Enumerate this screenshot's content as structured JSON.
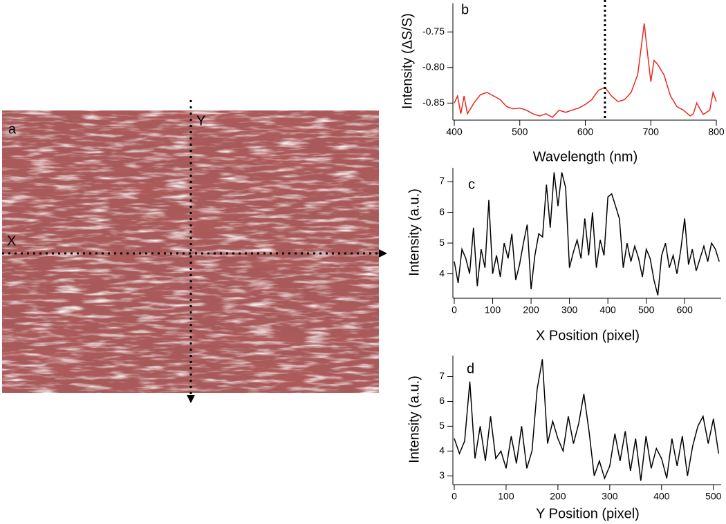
{
  "chart_data": [
    {
      "type": "image",
      "label": "a",
      "annotations": [
        "X",
        "Y"
      ],
      "color": "#a85a5a"
    },
    {
      "type": "line",
      "label": "b",
      "xlabel": "Wavelength (nm)",
      "ylabel": "Intensity (ΔS/S)",
      "color": "#e8281e",
      "x": [
        400,
        405,
        410,
        415,
        420,
        430,
        440,
        450,
        460,
        470,
        480,
        490,
        500,
        510,
        520,
        530,
        540,
        550,
        560,
        570,
        580,
        590,
        600,
        610,
        620,
        630,
        640,
        650,
        660,
        670,
        680,
        690,
        695,
        700,
        705,
        710,
        720,
        730,
        740,
        750,
        760,
        765,
        770,
        780,
        790,
        795,
        800
      ],
      "values": [
        -0.85,
        -0.84,
        -0.865,
        -0.84,
        -0.865,
        -0.85,
        -0.838,
        -0.835,
        -0.84,
        -0.845,
        -0.855,
        -0.858,
        -0.857,
        -0.86,
        -0.865,
        -0.868,
        -0.865,
        -0.87,
        -0.86,
        -0.863,
        -0.86,
        -0.857,
        -0.852,
        -0.845,
        -0.832,
        -0.828,
        -0.84,
        -0.848,
        -0.845,
        -0.835,
        -0.81,
        -0.738,
        -0.78,
        -0.82,
        -0.79,
        -0.795,
        -0.81,
        -0.84,
        -0.855,
        -0.86,
        -0.868,
        -0.865,
        -0.85,
        -0.866,
        -0.86,
        -0.835,
        -0.848
      ],
      "xlim": [
        400,
        800
      ],
      "xticks": [
        400,
        500,
        600,
        700,
        800
      ],
      "ylim": [
        -0.872,
        -0.71
      ],
      "yticks": [
        -0.85,
        {
          "value": -0.8,
          "label": "-0.80"
        },
        -0.75
      ],
      "marker_x": 630
    },
    {
      "type": "line",
      "label": "c",
      "xlabel": "X Position (pixel)",
      "ylabel": "Intensity (a.u.)",
      "color": "#000000",
      "x": [
        0,
        10,
        20,
        30,
        40,
        50,
        60,
        70,
        80,
        90,
        100,
        110,
        120,
        130,
        140,
        150,
        160,
        170,
        180,
        190,
        200,
        210,
        220,
        230,
        240,
        250,
        260,
        270,
        280,
        290,
        300,
        310,
        320,
        330,
        340,
        350,
        360,
        370,
        380,
        390,
        400,
        410,
        420,
        430,
        440,
        450,
        460,
        470,
        480,
        490,
        500,
        510,
        520,
        530,
        540,
        550,
        560,
        570,
        580,
        590,
        600,
        610,
        620,
        630,
        640,
        650,
        660,
        670,
        680,
        690
      ],
      "values": [
        4.4,
        3.7,
        4.8,
        4.5,
        4.0,
        5.5,
        3.6,
        4.8,
        4.2,
        6.4,
        4.0,
        4.6,
        3.9,
        5.0,
        4.5,
        5.3,
        3.8,
        4.3,
        5.0,
        5.6,
        3.5,
        4.6,
        5.3,
        5.2,
        6.9,
        5.5,
        7.3,
        6.2,
        7.3,
        6.8,
        4.2,
        4.7,
        5.1,
        4.5,
        5.8,
        4.6,
        6.0,
        4.2,
        5.1,
        4.6,
        6.5,
        6.6,
        6.2,
        5.8,
        4.2,
        5.0,
        4.4,
        4.9,
        4.5,
        3.9,
        4.8,
        4.5,
        3.8,
        3.3,
        4.6,
        5.0,
        4.2,
        4.6,
        4.0,
        4.8,
        5.8,
        4.3,
        4.8,
        4.1,
        4.5,
        4.9,
        4.4,
        5.0,
        4.8,
        4.4
      ],
      "xlim": [
        0,
        695
      ],
      "xticks": [
        0,
        100,
        200,
        300,
        400,
        500,
        600
      ],
      "ylim": [
        3.25,
        7.45
      ],
      "yticks": [
        4,
        5,
        6,
        7
      ]
    },
    {
      "type": "line",
      "label": "d",
      "xlabel": "Y Position (pixel)",
      "ylabel": "Intensity (a.u.)",
      "color": "#000000",
      "x": [
        0,
        10,
        20,
        30,
        40,
        50,
        60,
        70,
        80,
        90,
        100,
        110,
        120,
        130,
        140,
        150,
        160,
        170,
        180,
        190,
        200,
        210,
        220,
        230,
        240,
        250,
        260,
        270,
        280,
        290,
        300,
        310,
        320,
        330,
        340,
        350,
        360,
        370,
        380,
        390,
        400,
        410,
        420,
        430,
        440,
        450,
        460,
        470,
        480,
        490,
        500,
        510
      ],
      "values": [
        4.5,
        3.9,
        4.4,
        6.8,
        3.7,
        5.0,
        3.6,
        5.4,
        3.7,
        4.0,
        3.3,
        4.6,
        3.5,
        5.0,
        3.3,
        4.0,
        6.5,
        7.7,
        4.3,
        5.2,
        4.5,
        4.0,
        5.4,
        4.3,
        5.1,
        6.3,
        4.8,
        3.0,
        3.6,
        2.9,
        3.4,
        4.7,
        3.6,
        4.8,
        3.2,
        4.5,
        2.8,
        4.6,
        3.3,
        4.1,
        3.7,
        2.9,
        4.5,
        3.4,
        4.6,
        3.0,
        4.2,
        5.0,
        5.4,
        4.3,
        5.3,
        3.9
      ],
      "xlim": [
        0,
        515
      ],
      "xticks": [
        0,
        100,
        200,
        300,
        400,
        500
      ],
      "ylim": [
        2.7,
        7.85
      ],
      "yticks": [
        3,
        4,
        5,
        6,
        7
      ]
    }
  ]
}
